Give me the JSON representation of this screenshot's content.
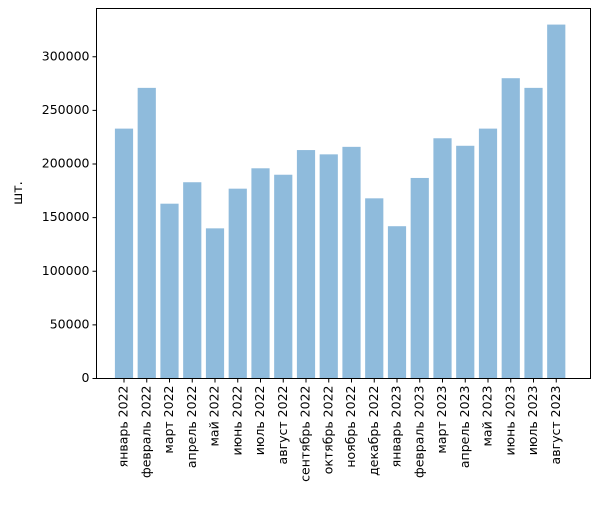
{
  "chart_data": {
    "type": "bar",
    "title": "",
    "xlabel": "",
    "ylabel": "шт.",
    "ylim": [
      0,
      345000
    ],
    "yticks": [
      0,
      50000,
      100000,
      150000,
      200000,
      250000,
      300000
    ],
    "ytick_labels": [
      "0",
      "50000",
      "100000",
      "150000",
      "200000",
      "250000",
      "300000"
    ],
    "grid": false,
    "legend": "none",
    "bar_color": "#8fbbdc",
    "categories": [
      "январь 2022",
      "февраль 2022",
      "март 2022",
      "апрель 2022",
      "май 2022",
      "июнь 2022",
      "июль 2022",
      "август 2022",
      "сентябрь 2022",
      "октябрь 2022",
      "ноябрь 2022",
      "декабрь 2022",
      "январь 2023",
      "февраль 2023",
      "март 2023",
      "апрель 2023",
      "май 2023",
      "июнь 2023",
      "июль 2023",
      "август 2023"
    ],
    "values": [
      233000,
      271000,
      163000,
      183000,
      140000,
      177000,
      196000,
      190000,
      213000,
      209000,
      216000,
      168000,
      142000,
      187000,
      224000,
      217000,
      233000,
      280000,
      271000,
      330000
    ]
  }
}
